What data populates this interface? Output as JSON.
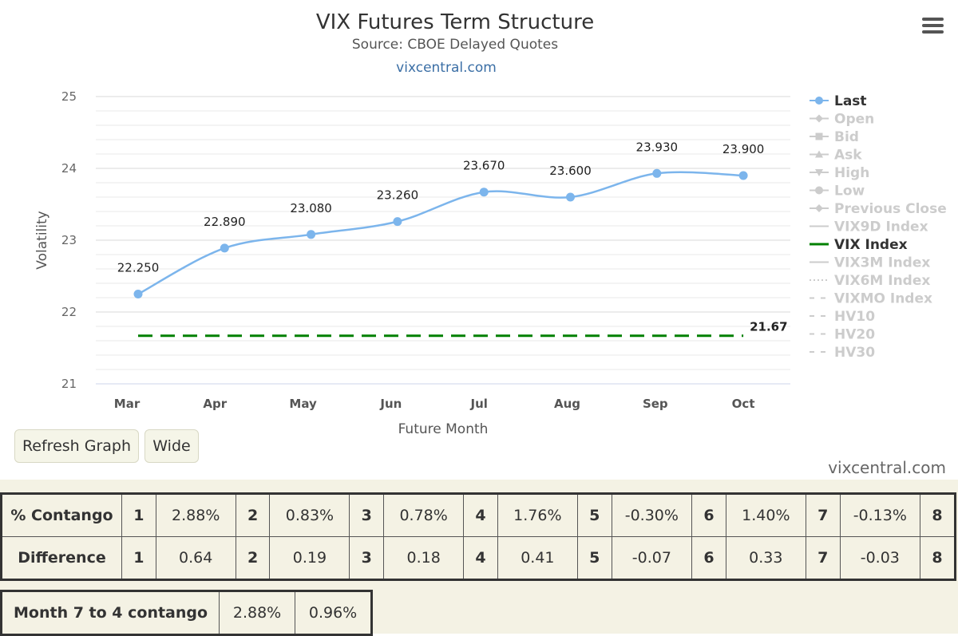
{
  "chart_data": {
    "type": "line",
    "title": "VIX Futures Term Structure",
    "subtitle": "Source: CBOE Delayed Quotes",
    "credit_top": "vixcentral.com",
    "categories": [
      "Mar",
      "Apr",
      "May",
      "Jun",
      "Jul",
      "Aug",
      "Sep",
      "Oct"
    ],
    "xlabel": "Future Month",
    "ylabel": "Volatility",
    "ylim": [
      21,
      25
    ],
    "yticks": [
      "21",
      "22",
      "23",
      "24",
      "25"
    ],
    "grid": true,
    "legend_position": "right",
    "series": [
      {
        "name": "Last",
        "values": [
          22.25,
          22.89,
          23.08,
          23.26,
          23.67,
          23.6,
          23.93,
          23.9
        ],
        "labels": [
          "22.250",
          "22.890",
          "23.080",
          "23.260",
          "23.670",
          "23.600",
          "23.930",
          "23.900"
        ],
        "color": "#7cb5ec"
      },
      {
        "name": "VIX Index",
        "value": 21.67,
        "label": "21.67",
        "color": "#008000"
      }
    ],
    "legend": [
      {
        "name": "Last",
        "active": true,
        "symbol": "circle",
        "color": "#7cb5ec"
      },
      {
        "name": "Open",
        "active": false,
        "symbol": "diamond"
      },
      {
        "name": "Bid",
        "active": false,
        "symbol": "square"
      },
      {
        "name": "Ask",
        "active": false,
        "symbol": "triangle"
      },
      {
        "name": "High",
        "active": false,
        "symbol": "triangle-down"
      },
      {
        "name": "Low",
        "active": false,
        "symbol": "circle"
      },
      {
        "name": "Previous Close",
        "active": false,
        "symbol": "diamond"
      },
      {
        "name": "VIX9D Index",
        "active": false,
        "symbol": "line"
      },
      {
        "name": "VIX Index",
        "active": true,
        "symbol": "line",
        "color": "#008000"
      },
      {
        "name": "VIX3M Index",
        "active": false,
        "symbol": "line"
      },
      {
        "name": "VIX6M Index",
        "active": false,
        "symbol": "dotted"
      },
      {
        "name": "VIXMO Index",
        "active": false,
        "symbol": "dashed"
      },
      {
        "name": "HV10",
        "active": false,
        "symbol": "dashed"
      },
      {
        "name": "HV20",
        "active": false,
        "symbol": "dashed"
      },
      {
        "name": "HV30",
        "active": false,
        "symbol": "dashed"
      }
    ]
  },
  "buttons": {
    "refresh": "Refresh Graph",
    "wide": "Wide"
  },
  "credit_bottom": "vixcentral.com",
  "contango_table": {
    "rows": [
      {
        "label": "% Contango",
        "cells": [
          [
            "1",
            "2.88%"
          ],
          [
            "2",
            "0.83%"
          ],
          [
            "3",
            "0.78%"
          ],
          [
            "4",
            "1.76%"
          ],
          [
            "5",
            "-0.30%"
          ],
          [
            "6",
            "1.40%"
          ],
          [
            "7",
            "-0.13%"
          ],
          [
            "8",
            ""
          ]
        ]
      },
      {
        "label": "Difference",
        "cells": [
          [
            "1",
            "0.64"
          ],
          [
            "2",
            "0.19"
          ],
          [
            "3",
            "0.18"
          ],
          [
            "4",
            "0.41"
          ],
          [
            "5",
            "-0.07"
          ],
          [
            "6",
            "0.33"
          ],
          [
            "7",
            "-0.03"
          ],
          [
            "8",
            ""
          ]
        ]
      }
    ]
  },
  "month_table": {
    "label": "Month 7 to 4 contango",
    "values": [
      "2.88%",
      "0.96%"
    ]
  }
}
